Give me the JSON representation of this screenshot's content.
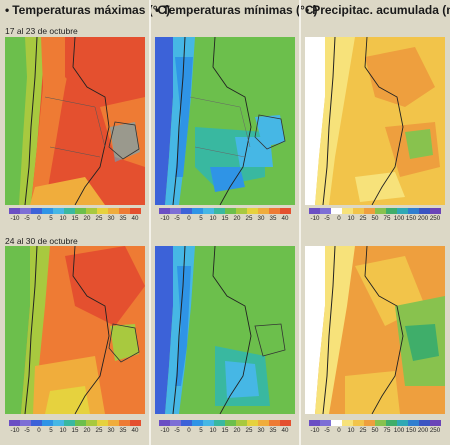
{
  "columns": [
    {
      "title": "Temperaturas máximas (°C)",
      "ticks": [
        "-10",
        "-5",
        "0",
        "5",
        "10",
        "15",
        "20",
        "25",
        "30",
        "35",
        "40"
      ],
      "colors": [
        "#6b4fc4",
        "#7d6fd6",
        "#3c62d8",
        "#2f94e6",
        "#46b7e5",
        "#39b8a0",
        "#6cbf4c",
        "#a8c93f",
        "#e6d23e",
        "#f0ad3c",
        "#ee7b34",
        "#e4502f"
      ]
    },
    {
      "title": "Temperaturas mínimas (°C)",
      "ticks": [
        "-10",
        "-5",
        "0",
        "5",
        "10",
        "15",
        "20",
        "25",
        "30",
        "35",
        "40"
      ],
      "colors": [
        "#6b4fc4",
        "#7d6fd6",
        "#3c62d8",
        "#2f94e6",
        "#46b7e5",
        "#39b8a0",
        "#6cbf4c",
        "#a8c93f",
        "#e6d23e",
        "#f0ad3c",
        "#ee7b34",
        "#e4502f"
      ]
    },
    {
      "title": "Precipitac. acumulada (mm)",
      "ticks": [
        "-10",
        "-5",
        "0",
        "10",
        "25",
        "50",
        "75",
        "100",
        "150",
        "200",
        "250"
      ],
      "colors": [
        "#6b4fc4",
        "#7d6fd6",
        "#ffffff",
        "#f7e27a",
        "#f2c44a",
        "#ee9f3e",
        "#88c24e",
        "#3fae6a",
        "#2fa9b5",
        "#2f7fd0",
        "#3a54c2",
        "#6a44b8"
      ]
    }
  ],
  "weeks": [
    {
      "label": "17 al 23 de octubre"
    },
    {
      "label": "24 al 30 de octubre"
    }
  ]
}
